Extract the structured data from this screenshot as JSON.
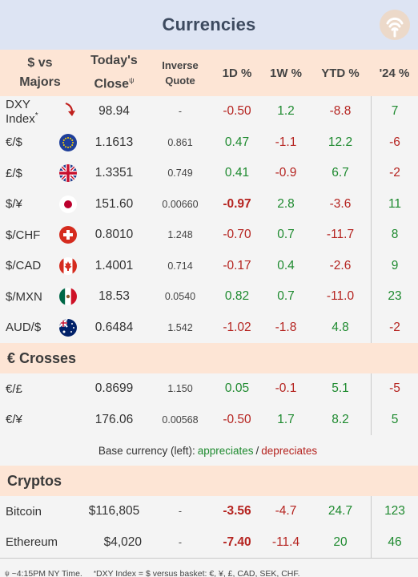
{
  "title": "Currencies",
  "colors": {
    "positive": "#1e8a2f",
    "negative": "#b5231f",
    "header_bg": "#dde4f3",
    "section_bg": "#fde5d5"
  },
  "columns": {
    "pair_l1": "$ vs",
    "pair_l2": "Majors",
    "close_l1": "Today's",
    "close_l2": "Close",
    "close_mark": "ψ",
    "inv_l1": "Inverse",
    "inv_l2": "Quote",
    "d1": "1D %",
    "w1": "1W %",
    "ytd": "YTD %",
    "y24": "'24 %"
  },
  "majors": [
    {
      "name": "DXY Index",
      "mark": "*",
      "icon": "arrow-down-icon",
      "close": "98.94",
      "inverse": "-",
      "d1": "-0.50",
      "w1": "1.2",
      "ytd": "-8.8",
      "y24": "7"
    },
    {
      "name": "€/$",
      "icon": "eu-flag-icon",
      "close": "1.1613",
      "inverse": "0.861",
      "d1": "0.47",
      "w1": "-1.1",
      "ytd": "12.2",
      "y24": "-6"
    },
    {
      "name": "£/$",
      "icon": "uk-flag-icon",
      "close": "1.3351",
      "inverse": "0.749",
      "d1": "0.41",
      "w1": "-0.9",
      "ytd": "6.7",
      "y24": "-2"
    },
    {
      "name": "$/¥",
      "icon": "japan-flag-icon",
      "close": "151.60",
      "inverse": "0.00660",
      "d1": "-0.97",
      "w1": "2.8",
      "ytd": "-3.6",
      "y24": "11"
    },
    {
      "name": "$/CHF",
      "icon": "swiss-flag-icon",
      "close": "0.8010",
      "inverse": "1.248",
      "d1": "-0.70",
      "w1": "0.7",
      "ytd": "-11.7",
      "y24": "8"
    },
    {
      "name": "$/CAD",
      "icon": "canada-flag-icon",
      "close": "1.4001",
      "inverse": "0.714",
      "d1": "-0.17",
      "w1": "0.4",
      "ytd": "-2.6",
      "y24": "9"
    },
    {
      "name": "$/MXN",
      "icon": "mexico-flag-icon",
      "close": "18.53",
      "inverse": "0.0540",
      "d1": "0.82",
      "w1": "0.7",
      "ytd": "-11.0",
      "y24": "23"
    },
    {
      "name": "AUD/$",
      "icon": "australia-flag-icon",
      "close": "0.6484",
      "inverse": "1.542",
      "d1": "-1.02",
      "w1": "-1.8",
      "ytd": "4.8",
      "y24": "-2"
    }
  ],
  "crosses_title": "€ Crosses",
  "crosses": [
    {
      "name": "€/£",
      "close": "0.8699",
      "inverse": "1.150",
      "d1": "0.05",
      "w1": "-0.1",
      "ytd": "5.1",
      "y24": "-5"
    },
    {
      "name": "€/¥",
      "close": "176.06",
      "inverse": "0.00568",
      "d1": "-0.50",
      "w1": "1.7",
      "ytd": "8.2",
      "y24": "5"
    }
  ],
  "legend": {
    "prefix": "Base currency (left):",
    "up": "appreciates",
    "sep": "/",
    "down": "depreciates"
  },
  "cryptos_title": "Cryptos",
  "cryptos": [
    {
      "name": "Bitcoin",
      "close": "$116,805",
      "inverse": "-",
      "d1": "-3.56",
      "w1": "-4.7",
      "ytd": "24.7",
      "y24": "123"
    },
    {
      "name": "Ethereum",
      "close": "$4,020",
      "inverse": "-",
      "d1": "-7.40",
      "w1": "-11.4",
      "ytd": "20",
      "y24": "46"
    }
  ],
  "footer": {
    "mark1": "ψ",
    "note1": "~4:15PM NY Time.",
    "mark2": "*",
    "note2": "DXY Index = $ versus basket: €, ¥, £, CAD, SEK, CHF."
  }
}
